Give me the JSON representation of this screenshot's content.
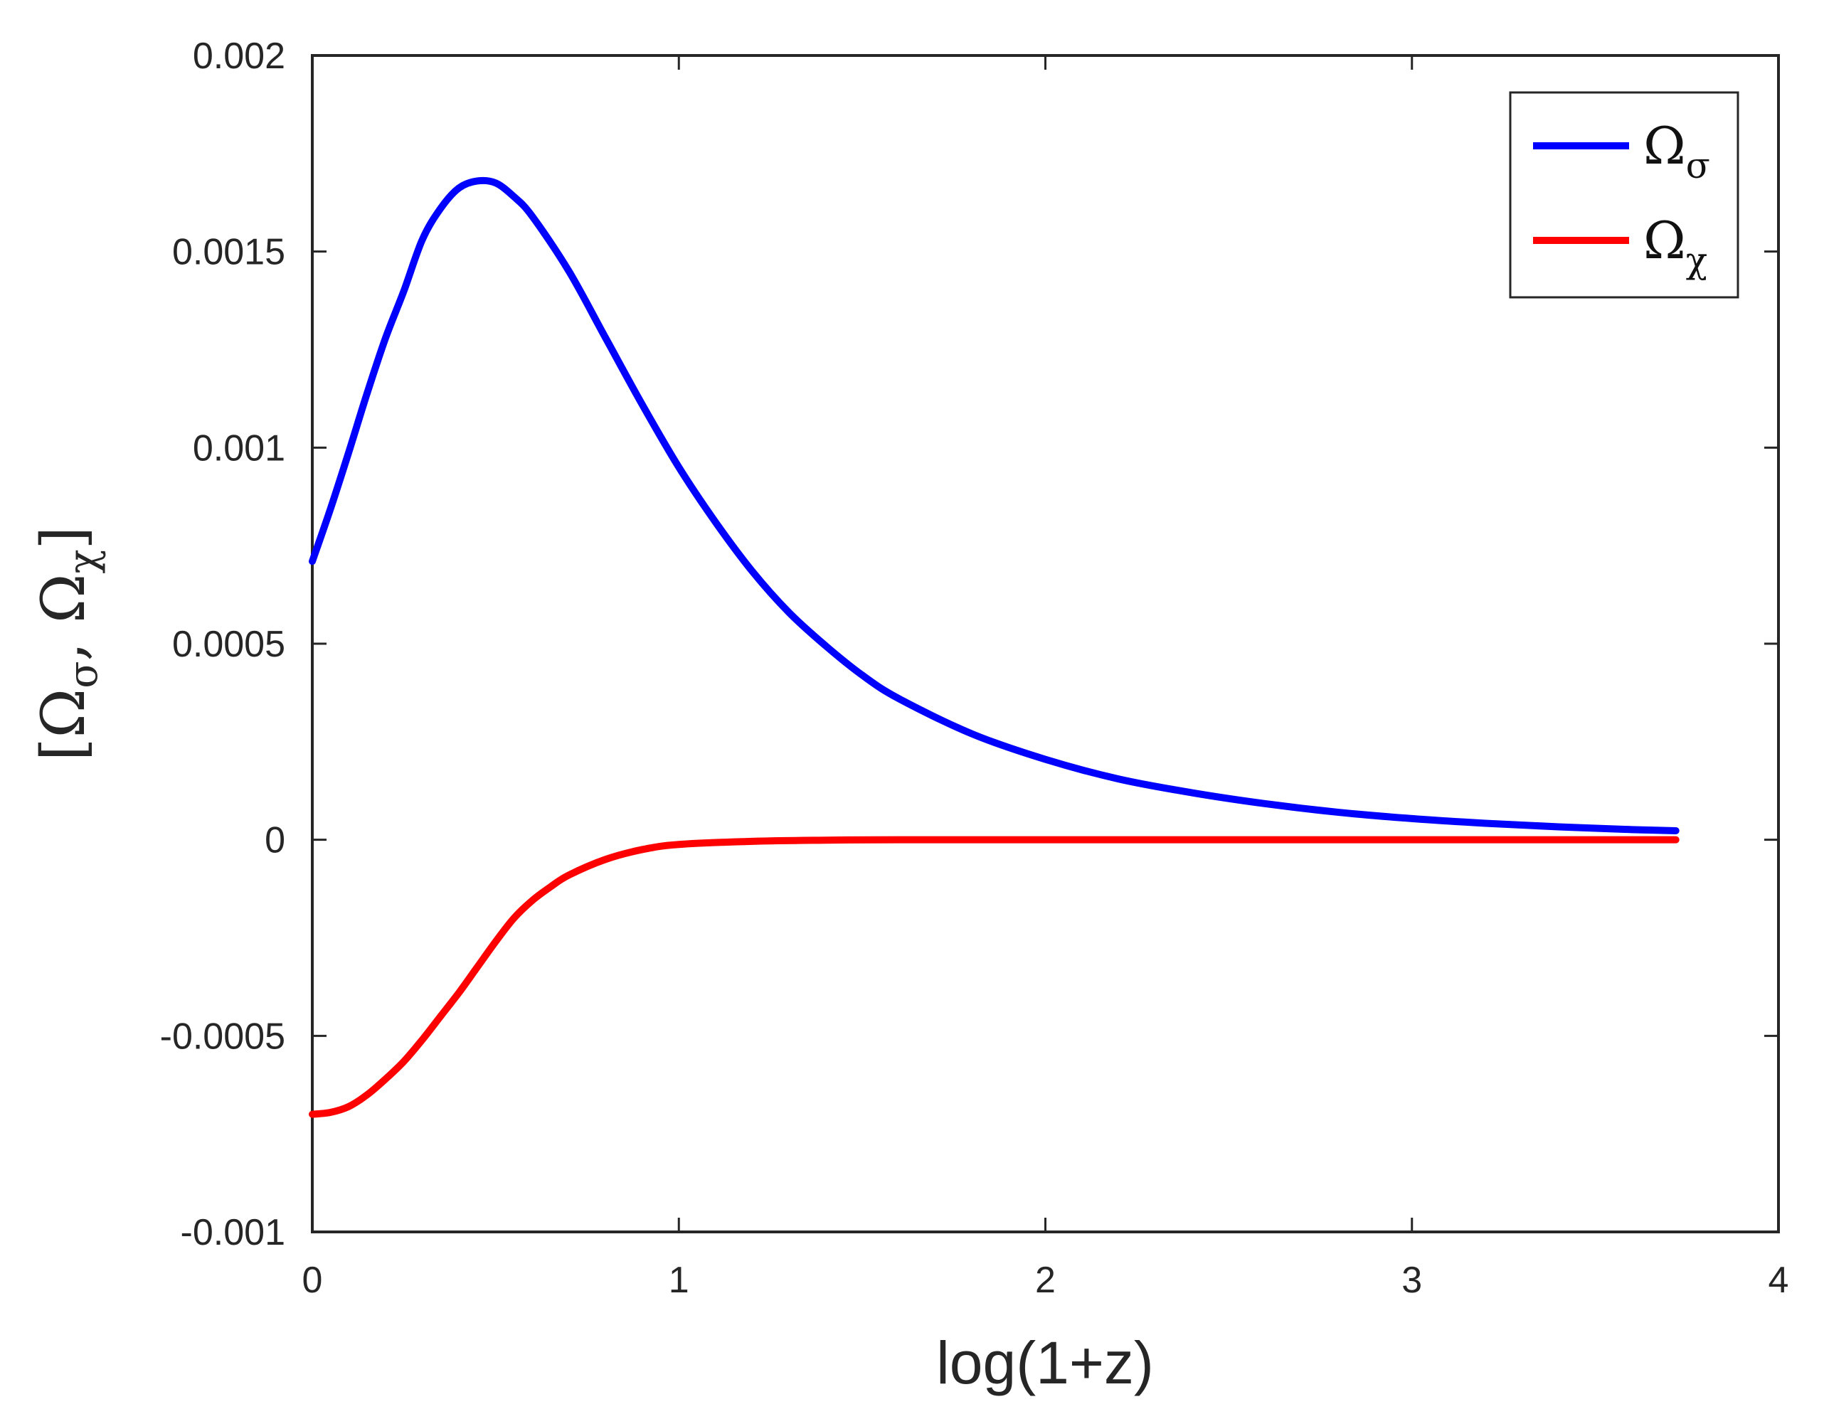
{
  "chart_data": {
    "type": "line",
    "title": "",
    "xlabel": "log(1+z)",
    "ylabel": {
      "open": "[",
      "omega": "Ω",
      "sub1": "σ",
      "sep": ", ",
      "sub2": "χ",
      "close": "]"
    },
    "xlim": [
      0,
      4
    ],
    "ylim": [
      -0.001,
      0.002
    ],
    "xticks": [
      "0",
      "1",
      "2",
      "3",
      "4"
    ],
    "yticks": [
      "-0.001",
      "-0.0005",
      "0",
      "0.0005",
      "0.001",
      "0.0015",
      "0.002"
    ],
    "grid": false,
    "legend_position": "top-right",
    "series": [
      {
        "name": "Ωσ",
        "legend": {
          "symbol": "Ω",
          "sub": "σ"
        },
        "color": "#0000ff",
        "x": [
          0,
          0.05,
          0.1,
          0.15,
          0.2,
          0.25,
          0.3,
          0.35,
          0.4,
          0.45,
          0.5,
          0.55,
          0.6,
          0.7,
          0.8,
          0.9,
          1.0,
          1.1,
          1.2,
          1.3,
          1.4,
          1.5,
          1.6,
          1.8,
          2.0,
          2.2,
          2.4,
          2.6,
          2.8,
          3.0,
          3.2,
          3.4,
          3.6,
          3.72
        ],
        "y": [
          0.00071,
          0.000845,
          0.00099,
          0.00114,
          0.00128,
          0.0014,
          0.00153,
          0.00161,
          0.001662,
          0.00168,
          0.001675,
          0.00164,
          0.00159,
          0.00145,
          0.00128,
          0.00111,
          0.00095,
          0.00081,
          0.000685,
          0.00058,
          0.000495,
          0.00042,
          0.00036,
          0.00027,
          0.000205,
          0.000155,
          0.00012,
          9.2e-05,
          7e-05,
          5.4e-05,
          4.2e-05,
          3.3e-05,
          2.6e-05,
          2.3e-05
        ]
      },
      {
        "name": "Ωχ",
        "legend": {
          "symbol": "Ω",
          "sub": "χ"
        },
        "color": "#ff0000",
        "x": [
          0,
          0.05,
          0.1,
          0.15,
          0.2,
          0.25,
          0.3,
          0.35,
          0.4,
          0.45,
          0.5,
          0.55,
          0.6,
          0.65,
          0.7,
          0.8,
          0.9,
          1.0,
          1.2,
          1.4,
          1.6,
          2.0,
          2.5,
          3.0,
          3.5,
          3.72
        ],
        "y": [
          -0.0007,
          -0.000695,
          -0.00068,
          -0.00065,
          -0.00061,
          -0.000565,
          -0.00051,
          -0.00045,
          -0.00039,
          -0.000325,
          -0.00026,
          -0.0002,
          -0.000155,
          -0.00012,
          -9e-05,
          -5e-05,
          -2.5e-05,
          -1.2e-05,
          -4e-06,
          -1e-06,
          0,
          0,
          0,
          0,
          0,
          0
        ]
      }
    ]
  }
}
